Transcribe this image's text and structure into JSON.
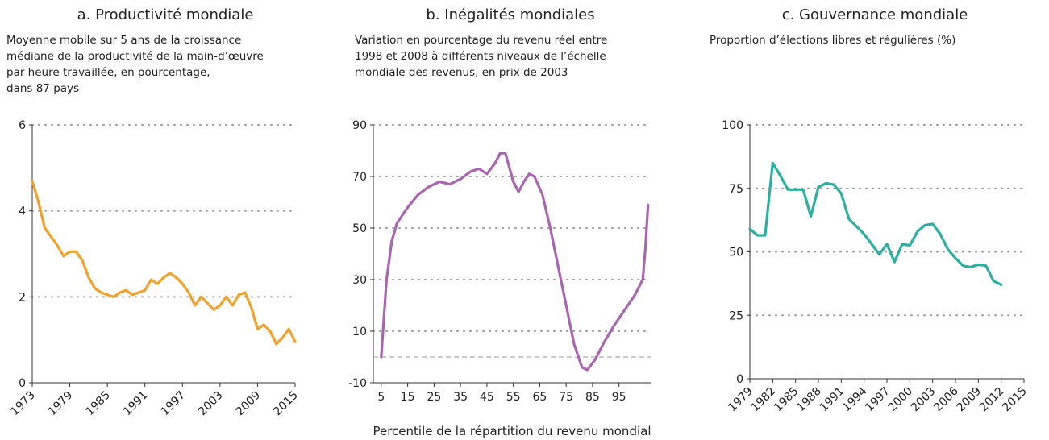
{
  "chart_data": [
    {
      "type": "line",
      "title": "a. Productivité mondiale",
      "subtitle": [
        "Moyenne mobile sur 5 ans de la croissance",
        "médiane de la productivité de la main-d’œuvre",
        "par heure travaillée, en pourcentage,",
        "dans 87 pays"
      ],
      "color": "#f0a22a",
      "x": [
        1973,
        1974,
        1975,
        1976,
        1977,
        1978,
        1979,
        1980,
        1981,
        1982,
        1983,
        1984,
        1985,
        1986,
        1987,
        1988,
        1989,
        1990,
        1991,
        1992,
        1993,
        1994,
        1995,
        1996,
        1997,
        1998,
        1999,
        2000,
        2001,
        2002,
        2003,
        2004,
        2005,
        2006,
        2007,
        2008,
        2009,
        2010,
        2011,
        2012,
        2013,
        2014,
        2015
      ],
      "values": [
        4.7,
        4.2,
        3.6,
        3.4,
        3.2,
        2.95,
        3.05,
        3.05,
        2.85,
        2.45,
        2.2,
        2.1,
        2.05,
        2.0,
        2.1,
        2.15,
        2.05,
        2.1,
        2.15,
        2.4,
        2.3,
        2.45,
        2.55,
        2.45,
        2.3,
        2.1,
        1.8,
        2.0,
        1.85,
        1.7,
        1.8,
        2.0,
        1.8,
        2.05,
        2.1,
        1.75,
        1.25,
        1.35,
        1.2,
        0.9,
        1.05,
        1.25,
        0.95
      ],
      "xlim": [
        1973,
        2015
      ],
      "xticks": [
        1973,
        1979,
        1985,
        1991,
        1997,
        2003,
        2009,
        2015
      ],
      "ylim": [
        0,
        6
      ],
      "yticks": [
        0,
        2,
        4,
        6
      ],
      "grid": true,
      "rotate_xticks": true
    },
    {
      "type": "line",
      "title": "b. Inégalités mondiales",
      "subtitle": [
        "Variation en pourcentage du revenu réel entre",
        "1998 et 2008 à différents niveaux de l’échelle",
        "mondiale des revenus, en prix de 2003"
      ],
      "xlabel": "Percentile de la répartition du revenu mondial",
      "color": "#a866b0",
      "x": [
        5,
        6,
        7,
        9,
        11,
        15,
        19,
        23,
        27,
        31,
        35,
        39,
        42,
        45,
        48,
        50,
        52,
        55,
        57,
        59,
        61,
        63,
        66,
        69,
        72,
        75,
        78,
        81,
        83,
        86,
        89,
        93,
        97,
        101,
        104,
        105,
        106
      ],
      "values": [
        0,
        15,
        30,
        45,
        52,
        58,
        63,
        66,
        68,
        67,
        69,
        72,
        73,
        71,
        75,
        79,
        79,
        68,
        64,
        68,
        71,
        70,
        63,
        50,
        35,
        20,
        5,
        -4,
        -5,
        -1,
        5,
        12,
        18,
        24,
        30,
        42,
        59
      ],
      "xlim": [
        2,
        107
      ],
      "xticks": [
        5,
        15,
        25,
        35,
        45,
        55,
        65,
        75,
        85,
        95
      ],
      "ylim": [
        -10,
        90
      ],
      "yticks": [
        -10,
        10,
        30,
        50,
        70,
        90
      ],
      "grid": true,
      "hline": 0,
      "rotate_xticks": false
    },
    {
      "type": "line",
      "title": "c. Gouvernance mondiale",
      "subtitle": [
        "Proportion d’élections libres et régulières (%)"
      ],
      "color": "#2bb0a0",
      "x": [
        1979,
        1980,
        1981,
        1982,
        1983,
        1984,
        1985,
        1986,
        1987,
        1988,
        1989,
        1990,
        1991,
        1992,
        1993,
        1994,
        1995,
        1996,
        1997,
        1998,
        1999,
        2000,
        2001,
        2002,
        2003,
        2004,
        2005,
        2006,
        2007,
        2008,
        2009,
        2010,
        2011,
        2012
      ],
      "values": [
        59,
        56.5,
        56.5,
        85,
        80,
        74.5,
        74.5,
        74.5,
        64,
        75.5,
        77,
        76.5,
        73,
        63,
        60,
        57,
        53,
        49,
        53,
        46,
        53,
        52.5,
        58,
        60.5,
        61,
        57,
        51,
        47.5,
        44.5,
        44,
        45,
        44.5,
        38.5,
        37
      ],
      "xlim": [
        1979,
        2015
      ],
      "xticks": [
        1979,
        1982,
        1985,
        1988,
        1991,
        1994,
        1997,
        2000,
        2003,
        2006,
        2009,
        2012,
        2015
      ],
      "ylim": [
        0,
        100
      ],
      "yticks": [
        0,
        25,
        50,
        75,
        100
      ],
      "grid": true,
      "rotate_xticks": true
    }
  ]
}
